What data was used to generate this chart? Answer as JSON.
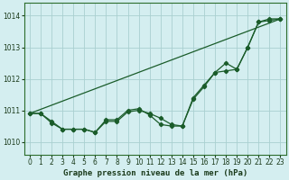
{
  "title": "Graphe pression niveau de la mer (hPa)",
  "background_color": "#d4eef0",
  "plot_bg_color": "#d4eef0",
  "grid_color": "#aad0d0",
  "line_color": "#1a5c2a",
  "ylim": [
    1009.6,
    1014.4
  ],
  "xlim": [
    -0.5,
    23.5
  ],
  "yticks": [
    1010,
    1011,
    1012,
    1013,
    1014
  ],
  "xticks": [
    0,
    1,
    2,
    3,
    4,
    5,
    6,
    7,
    8,
    9,
    10,
    11,
    12,
    13,
    14,
    15,
    16,
    17,
    18,
    19,
    20,
    21,
    22,
    23
  ],
  "line1_x": [
    0,
    1,
    2,
    3,
    4,
    5,
    6,
    7,
    8,
    9,
    10,
    11,
    12,
    13,
    14,
    15,
    16,
    17,
    18,
    19,
    20,
    21,
    22,
    23
  ],
  "line1_y": [
    1010.9,
    1010.9,
    1010.6,
    1010.4,
    1010.4,
    1010.4,
    1010.3,
    1010.7,
    1010.7,
    1011.0,
    1011.05,
    1010.85,
    1010.55,
    1010.5,
    1010.5,
    1011.35,
    1011.75,
    1012.2,
    1012.25,
    1012.3,
    1013.0,
    1013.8,
    1013.85,
    1013.9
  ],
  "line2_x": [
    0,
    1,
    2,
    3,
    4,
    5,
    6,
    7,
    8,
    9,
    10,
    11,
    12,
    13,
    14,
    15,
    16,
    17,
    18,
    19,
    20,
    21,
    22,
    23
  ],
  "line2_y": [
    1010.9,
    1010.9,
    1010.65,
    1010.4,
    1010.4,
    1010.4,
    1010.3,
    1010.65,
    1010.65,
    1010.95,
    1011.0,
    1010.9,
    1010.75,
    1010.55,
    1010.5,
    1011.4,
    1011.8,
    1012.2,
    1012.5,
    1012.3,
    1013.0,
    1013.8,
    1013.9,
    1013.9
  ],
  "line3_x": [
    0,
    23
  ],
  "line3_y": [
    1010.9,
    1013.9
  ],
  "xlabel_fontsize": 6.5,
  "tick_fontsize": 5.5
}
